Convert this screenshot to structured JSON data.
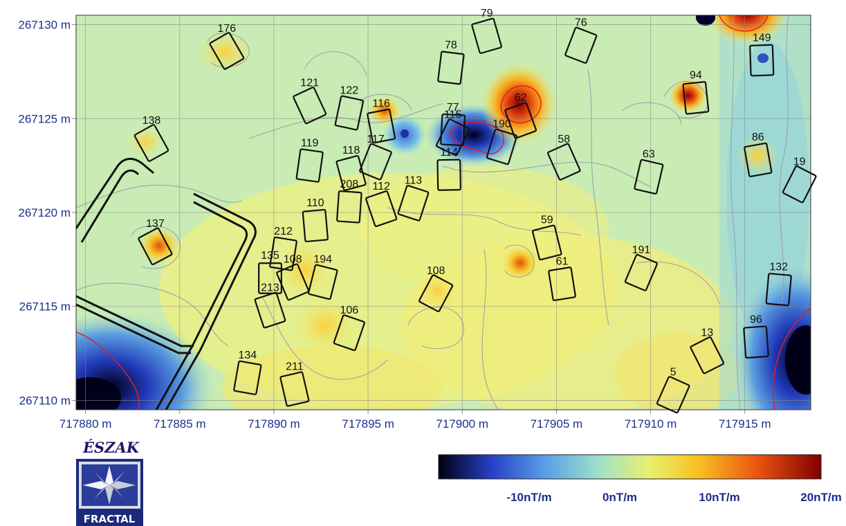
{
  "map": {
    "x_ticks": [
      "717880 m",
      "717885 m",
      "717890 m",
      "717895 m",
      "717900 m",
      "717905 m",
      "717910 m",
      "717915 m"
    ],
    "y_ticks": [
      "267130 m",
      "267125 m",
      "267120 m",
      "267115 m",
      "267110 m"
    ],
    "x_range": [
      717879.5,
      717918.5
    ],
    "y_range": [
      267109.5,
      267130.5
    ],
    "features": [
      {
        "label": "176",
        "x": 717887.5,
        "y": 267128.6
      },
      {
        "label": "78",
        "x": 717899.4,
        "y": 267127.7
      },
      {
        "label": "79",
        "x": 717901.3,
        "y": 267129.4
      },
      {
        "label": "76",
        "x": 717906.3,
        "y": 267128.9
      },
      {
        "label": "149",
        "x": 717915.9,
        "y": 267128.1
      },
      {
        "label": "121",
        "x": 717891.9,
        "y": 267125.7
      },
      {
        "label": "122",
        "x": 717894.0,
        "y": 267125.3
      },
      {
        "label": "116",
        "x": 717895.7,
        "y": 267124.6
      },
      {
        "label": "115",
        "x": 717899.5,
        "y": 267124.0
      },
      {
        "label": "77",
        "x": 717899.5,
        "y": 267124.4
      },
      {
        "label": "62",
        "x": 717903.1,
        "y": 267124.9
      },
      {
        "label": "190",
        "x": 717902.1,
        "y": 267123.5
      },
      {
        "label": "94",
        "x": 717912.4,
        "y": 267126.1
      },
      {
        "label": "138",
        "x": 717883.5,
        "y": 267123.7
      },
      {
        "label": "119",
        "x": 717891.9,
        "y": 267122.5
      },
      {
        "label": "118",
        "x": 717894.1,
        "y": 267122.1
      },
      {
        "label": "117",
        "x": 717895.4,
        "y": 267122.7
      },
      {
        "label": "114",
        "x": 717899.3,
        "y": 267122.0
      },
      {
        "label": "58",
        "x": 717905.4,
        "y": 267122.7
      },
      {
        "label": "63",
        "x": 717909.9,
        "y": 267121.9
      },
      {
        "label": "86",
        "x": 717915.7,
        "y": 267122.8
      },
      {
        "label": "19",
        "x": 717917.9,
        "y": 267121.5
      },
      {
        "label": "208",
        "x": 717894.0,
        "y": 267120.3
      },
      {
        "label": "112",
        "x": 717895.7,
        "y": 267120.2
      },
      {
        "label": "113",
        "x": 717897.4,
        "y": 267120.5
      },
      {
        "label": "110",
        "x": 717892.2,
        "y": 267119.3
      },
      {
        "label": "137",
        "x": 717883.7,
        "y": 267118.2
      },
      {
        "label": "212",
        "x": 717890.5,
        "y": 267117.8
      },
      {
        "label": "59",
        "x": 717904.5,
        "y": 267118.4
      },
      {
        "label": "191",
        "x": 717909.5,
        "y": 267116.8
      },
      {
        "label": "135",
        "x": 717889.8,
        "y": 267116.5
      },
      {
        "label": "108",
        "x": 717891.0,
        "y": 267116.3
      },
      {
        "label": "194",
        "x": 717892.6,
        "y": 267116.3
      },
      {
        "label": "61",
        "x": 717905.3,
        "y": 267116.2
      },
      {
        "label": "108",
        "x": 717898.6,
        "y": 267115.7
      },
      {
        "label": "132",
        "x": 717916.8,
        "y": 267115.9
      },
      {
        "label": "213",
        "x": 717889.8,
        "y": 267114.8
      },
      {
        "label": "106",
        "x": 717894.0,
        "y": 267113.6
      },
      {
        "label": "96",
        "x": 717915.6,
        "y": 267113.1
      },
      {
        "label": "13",
        "x": 717913.0,
        "y": 267112.4
      },
      {
        "label": "134",
        "x": 717888.6,
        "y": 267111.2
      },
      {
        "label": "211",
        "x": 717891.1,
        "y": 267110.6
      },
      {
        "label": "5",
        "x": 717911.2,
        "y": 267110.3
      }
    ]
  },
  "color_scale": {
    "labels": [
      "-10nT/m",
      "0nT/m",
      "10nT/m",
      "20nT/m"
    ],
    "colors": [
      "#000010",
      "#2840c8",
      "#5aa0e6",
      "#a0e0c8",
      "#e8f070",
      "#f8c020",
      "#e85010",
      "#800000"
    ]
  },
  "logo": {
    "top_text": "ÉSZAK",
    "bottom_text": "FRACTAL"
  }
}
